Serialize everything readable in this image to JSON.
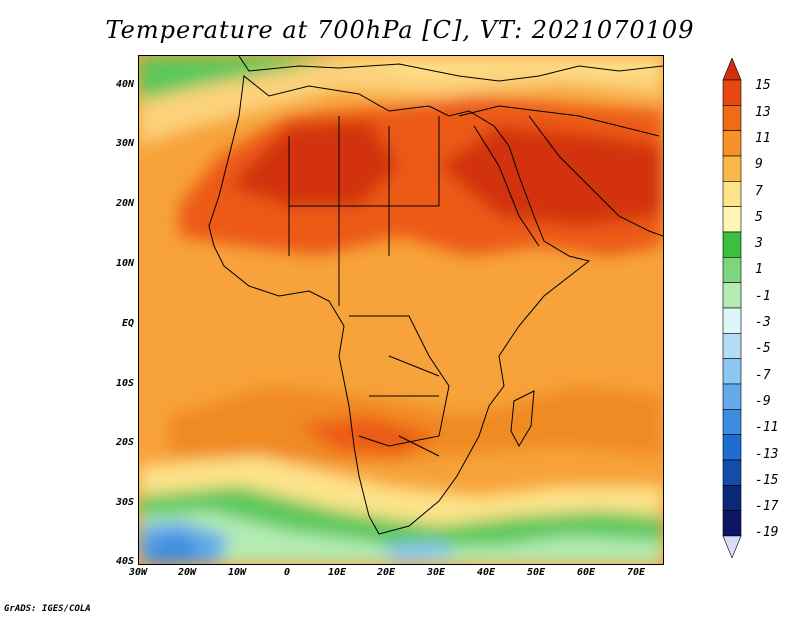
{
  "title": "Temperature at 700hPa [C], VT: 2021070109",
  "footer": "GrADS: IGES/COLA",
  "y_axis_labels": [
    "40N",
    "30N",
    "20N",
    "10N",
    "EQ",
    "10S",
    "20S",
    "30S",
    "40S"
  ],
  "x_axis_labels": [
    "30W",
    "20W",
    "10W",
    "0",
    "10E",
    "20E",
    "30E",
    "40E",
    "50E",
    "60E",
    "70E"
  ],
  "colorbar": {
    "labels": [
      "15",
      "13",
      "11",
      "9",
      "7",
      "5",
      "3",
      "1",
      "-1",
      "-3",
      "-5",
      "-7",
      "-9",
      "-11",
      "-13",
      "-15",
      "-17",
      "-19"
    ],
    "colors": [
      "#d2300c",
      "#e6480f",
      "#f06c14",
      "#f79326",
      "#fbb748",
      "#fde38a",
      "#fdf6b6",
      "#3cbf3c",
      "#7ed67e",
      "#b4ecb4",
      "#dff6f6",
      "#b4dcf6",
      "#8cc6f2",
      "#64aaea",
      "#3c8ce0",
      "#1e6cd2",
      "#124ea8",
      "#0a2a78",
      "#0c1464",
      "#dcdcfa"
    ]
  }
}
